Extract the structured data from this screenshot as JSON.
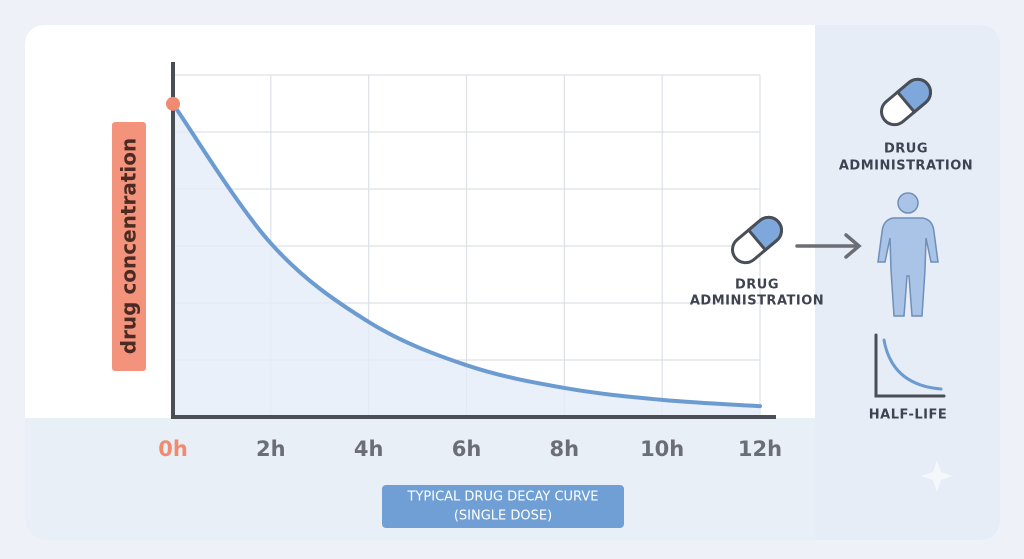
{
  "chart_data": {
    "type": "line",
    "ylabel": "drug concentration",
    "categories": [
      "0h",
      "2h",
      "4h",
      "6h",
      "8h",
      "10h",
      "12h"
    ],
    "values": [
      5.5,
      3.05,
      1.67,
      0.91,
      0.51,
      0.3,
      0.19
    ],
    "color": "#6b9bd1",
    "first_color": "#f08a70",
    "ylim": [
      0,
      6.2
    ],
    "grid": true,
    "caption": [
      "TYPICAL DRUG DECAY CURVE",
      "(SINGLE DOSE)"
    ]
  },
  "diagram": {
    "pill_label": [
      "DRUG",
      "ADMINISTRATION"
    ],
    "top_label": [
      "DRUG",
      "ADMINISTRATION"
    ],
    "half_life_label": "HALF-LIFE"
  }
}
